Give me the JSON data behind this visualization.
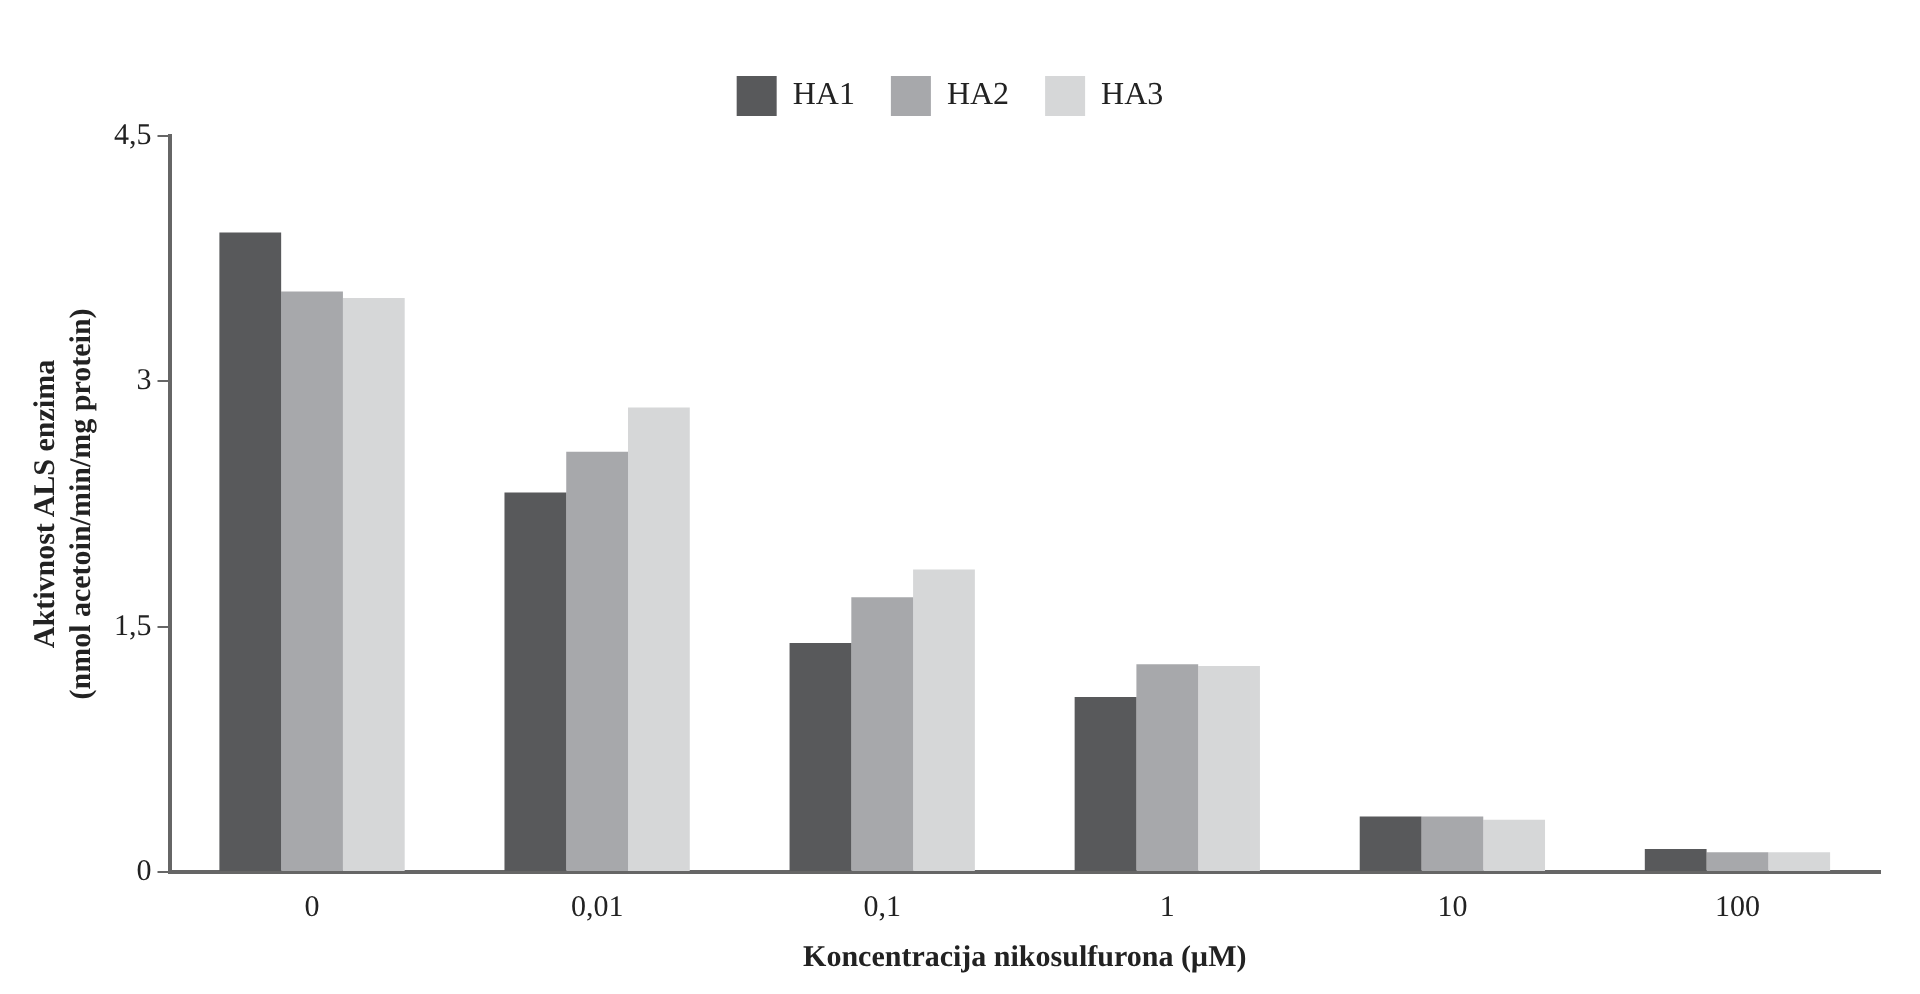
{
  "chart_data": {
    "type": "bar",
    "xlabel": "Koncentracija nikosulfurona (µM)",
    "ylabel": "Aktivnost ALS enzima\n(nmol acetoin/min/mg protein)",
    "categories": [
      "0",
      "0,01",
      "0,1",
      "1",
      "10",
      "100"
    ],
    "series": [
      {
        "name": "HA1",
        "color": "#58595b",
        "values": [
          3.91,
          2.32,
          1.4,
          1.07,
          0.34,
          0.14
        ]
      },
      {
        "name": "HA2",
        "color": "#a7a8ab",
        "values": [
          3.55,
          2.57,
          1.68,
          1.27,
          0.34,
          0.12
        ]
      },
      {
        "name": "HA3",
        "color": "#d6d7d8",
        "values": [
          3.51,
          2.84,
          1.85,
          1.26,
          0.32,
          0.12
        ]
      }
    ],
    "ylim": [
      0,
      4.5
    ],
    "yticks": [
      {
        "value": 0,
        "label": "0"
      },
      {
        "value": 1.5,
        "label": "1,5"
      },
      {
        "value": 3,
        "label": "3"
      },
      {
        "value": 4.5,
        "label": "4,5"
      }
    ],
    "grid": false,
    "legend": "top"
  }
}
